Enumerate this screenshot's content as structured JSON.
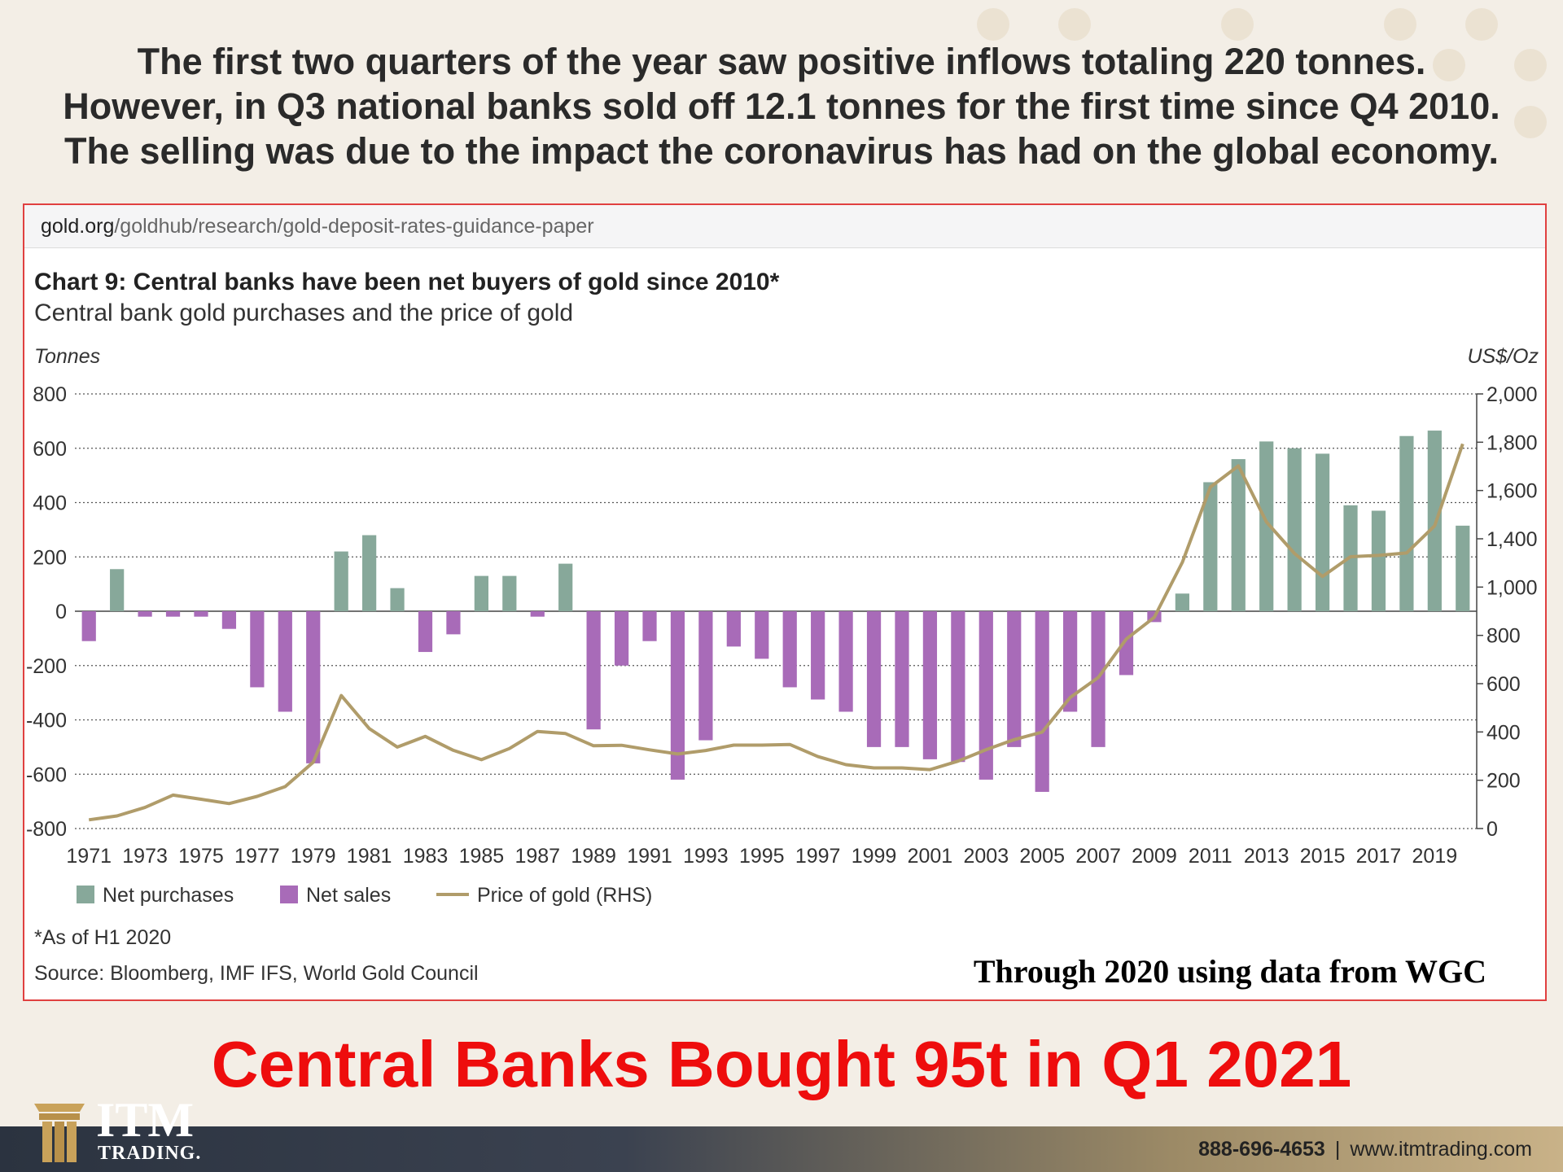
{
  "headline": {
    "line1": "The first two quarters of the year saw positive inflows totaling 220 tonnes.",
    "line2": "However, in Q3 national banks sold off 12.1 tonnes for the first time since Q4 2010.",
    "line3": "The selling was due to the impact the coronavirus has had on the global economy."
  },
  "browser": {
    "url_host": "gold.org",
    "url_path": "/goldhub/research/gold-deposit-rates-guidance-paper"
  },
  "chart_data": {
    "type": "bar",
    "title": "Chart 9: Central banks have been net buyers of gold since 2010*",
    "subtitle": "Central bank gold purchases and the price of gold",
    "ylabel": "Tonnes",
    "ylabel_right": "US$/Oz",
    "ylim": [
      -800,
      800
    ],
    "ylim_right": [
      0,
      2000
    ],
    "yticks": [
      "800",
      "600",
      "400",
      "200",
      "0",
      "-200",
      "-400",
      "-600",
      "-800"
    ],
    "yticks_right": [
      "2,000",
      "1,800",
      "1,600",
      "1,400",
      "1,000",
      "800",
      "600",
      "400",
      "200",
      "0"
    ],
    "xtick_labels": [
      "1971",
      "1973",
      "1975",
      "1977",
      "1979",
      "1981",
      "1983",
      "1985",
      "1987",
      "1989",
      "1991",
      "1993",
      "1995",
      "1997",
      "1999",
      "2001",
      "2003",
      "2005",
      "2007",
      "2009",
      "2011",
      "2013",
      "2015",
      "2017",
      "2019"
    ],
    "categories": [
      "1971",
      "1972",
      "1973",
      "1974",
      "1975",
      "1976",
      "1977",
      "1978",
      "1979",
      "1980",
      "1981",
      "1982",
      "1983",
      "1984",
      "1985",
      "1986",
      "1987",
      "1988",
      "1989",
      "1990",
      "1991",
      "1992",
      "1993",
      "1994",
      "1995",
      "1996",
      "1997",
      "1998",
      "1999",
      "2000",
      "2001",
      "2002",
      "2003",
      "2004",
      "2005",
      "2006",
      "2007",
      "2008",
      "2009",
      "2010",
      "2011",
      "2012",
      "2013",
      "2014",
      "2015",
      "2016",
      "2017",
      "2018",
      "2019",
      "2020"
    ],
    "values": [
      -110,
      155,
      -20,
      -20,
      -20,
      -65,
      -280,
      -370,
      -560,
      220,
      280,
      85,
      -150,
      -85,
      130,
      130,
      -20,
      175,
      -435,
      -200,
      -110,
      -620,
      -475,
      -130,
      -175,
      -280,
      -325,
      -370,
      -500,
      -500,
      -545,
      -555,
      -620,
      -500,
      -665,
      -370,
      -500,
      -235,
      -40,
      65,
      475,
      560,
      625,
      600,
      580,
      390,
      370,
      645,
      665,
      315
    ],
    "price_series": {
      "name": "Price of gold (RHS)",
      "values": [
        40,
        58,
        97,
        154,
        135,
        115,
        148,
        193,
        305,
        612,
        460,
        375,
        424,
        360,
        317,
        368,
        447,
        437,
        381,
        383,
        362,
        343,
        359,
        384,
        384,
        387,
        331,
        294,
        279,
        279,
        271,
        310,
        363,
        409,
        444,
        603,
        695,
        872,
        972,
        1225,
        1571,
        1669,
        1411,
        1266,
        1160,
        1251,
        1257,
        1268,
        1393,
        1770
      ]
    },
    "legend": [
      "Net purchases",
      "Net sales",
      "Price of gold (RHS)"
    ],
    "legend_position": "bottom-left",
    "grid": true,
    "colors": {
      "purchases": "#87a89a",
      "sales": "#a86bb8",
      "price": "#b09c6a"
    }
  },
  "footnotes": {
    "asof": "*As of H1 2020",
    "source": "Source: Bloomberg, IMF IFS, World Gold Council"
  },
  "annotation": "Through 2020 using data from WGC",
  "promo": "Central Banks Bought 95t in Q1 2021",
  "brand": {
    "name": "ITM",
    "tagline": "TRADING."
  },
  "contact": {
    "phone": "888-696-4653",
    "separator": "|",
    "website": "www.itmtrading.com"
  }
}
